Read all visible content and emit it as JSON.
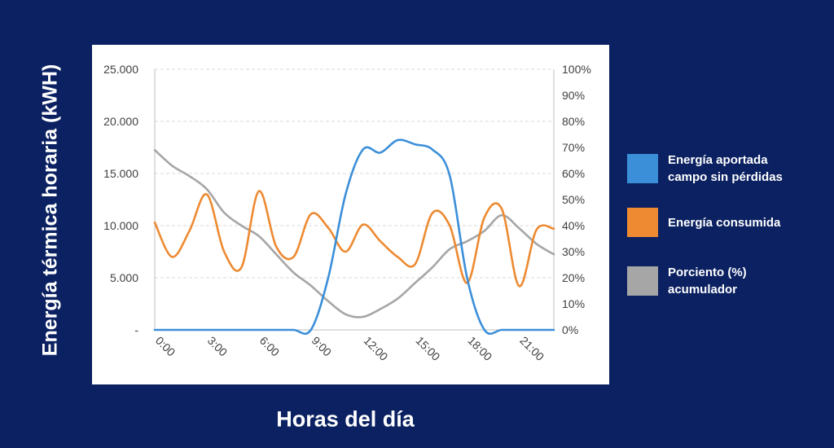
{
  "chart_data": {
    "type": "line",
    "xlabel": "Horas del día",
    "ylabel": "Energía térmica horaria (kWH)",
    "x_tick_labels": [
      "0:00",
      "3:00",
      "6:00",
      "9:00",
      "12:00",
      "15:00",
      "18:00",
      "21:00"
    ],
    "x_tick_hours": [
      0,
      3,
      6,
      9,
      12,
      15,
      18,
      21
    ],
    "x": [
      0,
      1,
      2,
      3,
      4,
      5,
      6,
      7,
      8,
      9,
      10,
      11,
      12,
      13,
      14,
      15,
      16,
      17,
      18,
      19,
      20,
      21,
      22,
      23
    ],
    "xlim": [
      0,
      23
    ],
    "y_left": {
      "lim": [
        0,
        25000
      ],
      "ticks": [
        0,
        5000,
        10000,
        15000,
        20000,
        25000
      ],
      "tick_labels": [
        "-",
        "5.000",
        "10.000",
        "15.000",
        "20.000",
        "25.000"
      ]
    },
    "y_right": {
      "lim": [
        0,
        100
      ],
      "ticks": [
        0,
        10,
        20,
        30,
        40,
        50,
        60,
        70,
        80,
        90,
        100
      ],
      "tick_labels": [
        "0%",
        "10%",
        "20%",
        "30%",
        "40%",
        "50%",
        "60%",
        "70%",
        "80%",
        "90%",
        "100%"
      ]
    },
    "grid": "horizontal",
    "legend_position": "right",
    "series": [
      {
        "name": "Energía aportada campo sin pérdidas",
        "axis": "left",
        "color": "#3b8fd9",
        "values": [
          0,
          0,
          0,
          0,
          0,
          0,
          0,
          0,
          0,
          0,
          5000,
          13000,
          17300,
          17000,
          18200,
          17800,
          17300,
          14800,
          5000,
          0,
          0,
          0,
          0,
          0
        ]
      },
      {
        "name": "Energía consumida",
        "axis": "left",
        "color": "#ed8a32",
        "values": [
          10300,
          7000,
          9500,
          13000,
          7500,
          6000,
          13300,
          8000,
          7000,
          11100,
          9800,
          7500,
          10100,
          8500,
          7000,
          6300,
          11200,
          10000,
          4500,
          10800,
          11600,
          4200,
          9600,
          9700
        ]
      },
      {
        "name": "Porciento (%) acumulador",
        "axis": "right",
        "color": "#a6a6a6",
        "values": [
          69,
          63,
          59,
          54,
          45,
          40,
          36,
          29,
          22,
          17,
          11,
          6,
          5,
          8,
          12,
          18,
          24,
          31,
          34,
          38,
          44,
          39,
          33,
          29
        ]
      }
    ]
  }
}
